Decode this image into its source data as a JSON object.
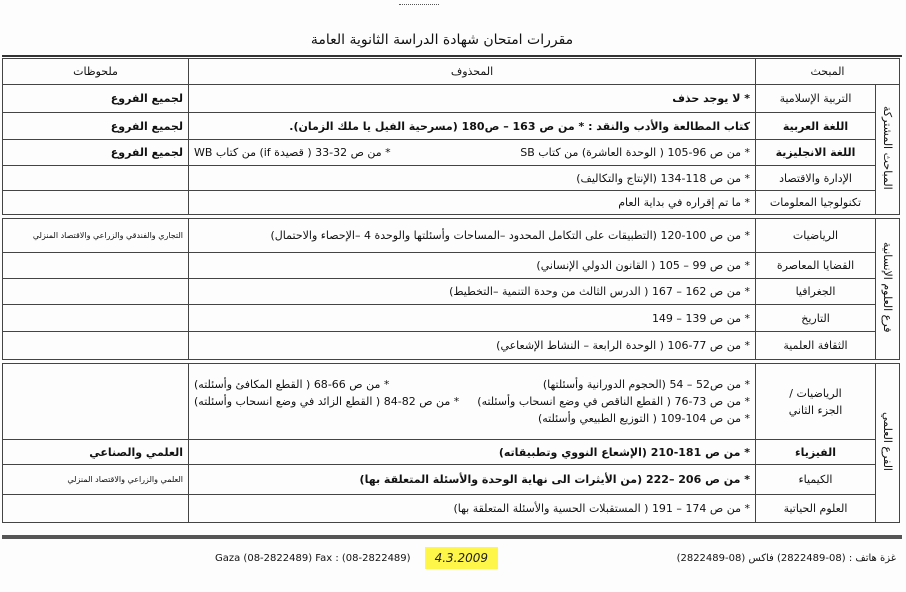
{
  "title": "مقررات امتحان شهادة الدراسة الثانوية العامة",
  "headers": {
    "subject": "المبحث",
    "deleted": "المحذوف",
    "notes": "ملحوظات"
  },
  "groups": {
    "common": "المباحث المشتركة",
    "humanities": "فرع العلوم الإنسانية",
    "science": "الفرع العلمي"
  },
  "common_rows": [
    {
      "subject": "التربية الإسلامية",
      "deleted": "* لا يوجد حذف",
      "notes": "لجميع الفروع"
    },
    {
      "subject": "اللغة العربية",
      "deleted": "كتاب المطالعة والأدب والنقد : * من ص 163 – ص180 (مسرحية الفيل يا ملك الزمان).",
      "notes": "لجميع الفروع"
    },
    {
      "subject": "اللغة الانجليزية",
      "deleted": "* من ص 96-105 ( الوحدة العاشرة) من كتاب SB",
      "deleted2": "* من ص 32-33 ( قصيدة if) من كتاب WB",
      "notes": "لجميع الفروع"
    },
    {
      "subject": "الإدارة والاقتصاد",
      "deleted": "* من ص 118-134 (الإنتاج والتكاليف)",
      "notes": ""
    },
    {
      "subject": "تكنولوجيا المعلومات",
      "deleted": "* ما تم إقراره في بداية العام",
      "notes": ""
    }
  ],
  "humanities_rows": [
    {
      "subject": "الرياضيات",
      "deleted": "* من ص 100-120 (التطبيقات على التكامل المحدود –المساحات وأسئلتها والوحدة 4 –الإحصاء والاحتمال)",
      "notes": "التجاري والفندقي والزراعي والاقتصاد المنزلي"
    },
    {
      "subject": "القضايا المعاصرة",
      "deleted": "* من ص 99 – 105 ( القانون الدولي الإنساني)",
      "notes": ""
    },
    {
      "subject": "الجغرافيا",
      "deleted": "* من ص 162 – 167 ( الدرس الثالث من وحدة التنمية –التخطيط)",
      "notes": ""
    },
    {
      "subject": "التاريخ",
      "deleted": "* من ص 139 – 149",
      "notes": ""
    },
    {
      "subject": "الثقافة العلمية",
      "deleted": "* من ص 77-106 ( الوحدة الرابعة – النشاط الإشعاعي)",
      "notes": ""
    }
  ],
  "science_math": {
    "subject_line1": "الرياضيات /",
    "subject_line2": "الجزء الثاني",
    "items": [
      "* من ص52 – 54 (الحجوم الدورانية وأسئلتها)",
      "* من ص 66-68 ( القطع المكافئ وأسئلته)",
      "* من ص 73-76 ( القطع الناقص في وضع انسحاب وأسئلته)",
      "* من ص 82-84 ( القطع الزائد في وضع انسحاب وأسئلته)",
      "* من ص 104-109 ( التوزيع الطبيعي وأسئلته)"
    ]
  },
  "science_rows": [
    {
      "subject": "الفيزياء",
      "deleted": "* من ص 181-210 (الإشعاع النووي وتطبيقاته)",
      "notes": "العلمي والصناعي"
    },
    {
      "subject": "الكيمياء",
      "deleted": "* من ص 206 –222 (من الأيثرات الى نهاية الوحدة والأسئلة المتعلقة بها)",
      "notes": "العلمي والزراعي والاقتصاد المنزلي"
    },
    {
      "subject": "العلوم الحياتية",
      "deleted": "* من ص 174 – 191 ( المستقبلات الحسية والأسئلة المتعلقة بها)",
      "notes": ""
    }
  ],
  "footer": {
    "left": "Gaza (08-2822489) Fax : (08-2822489)",
    "right": "غزة هاتف : (08-2822489) فاكس (08-2822489)",
    "handwritten_date": "4.3.2009"
  },
  "colors": {
    "highlight": "#fff64a"
  }
}
